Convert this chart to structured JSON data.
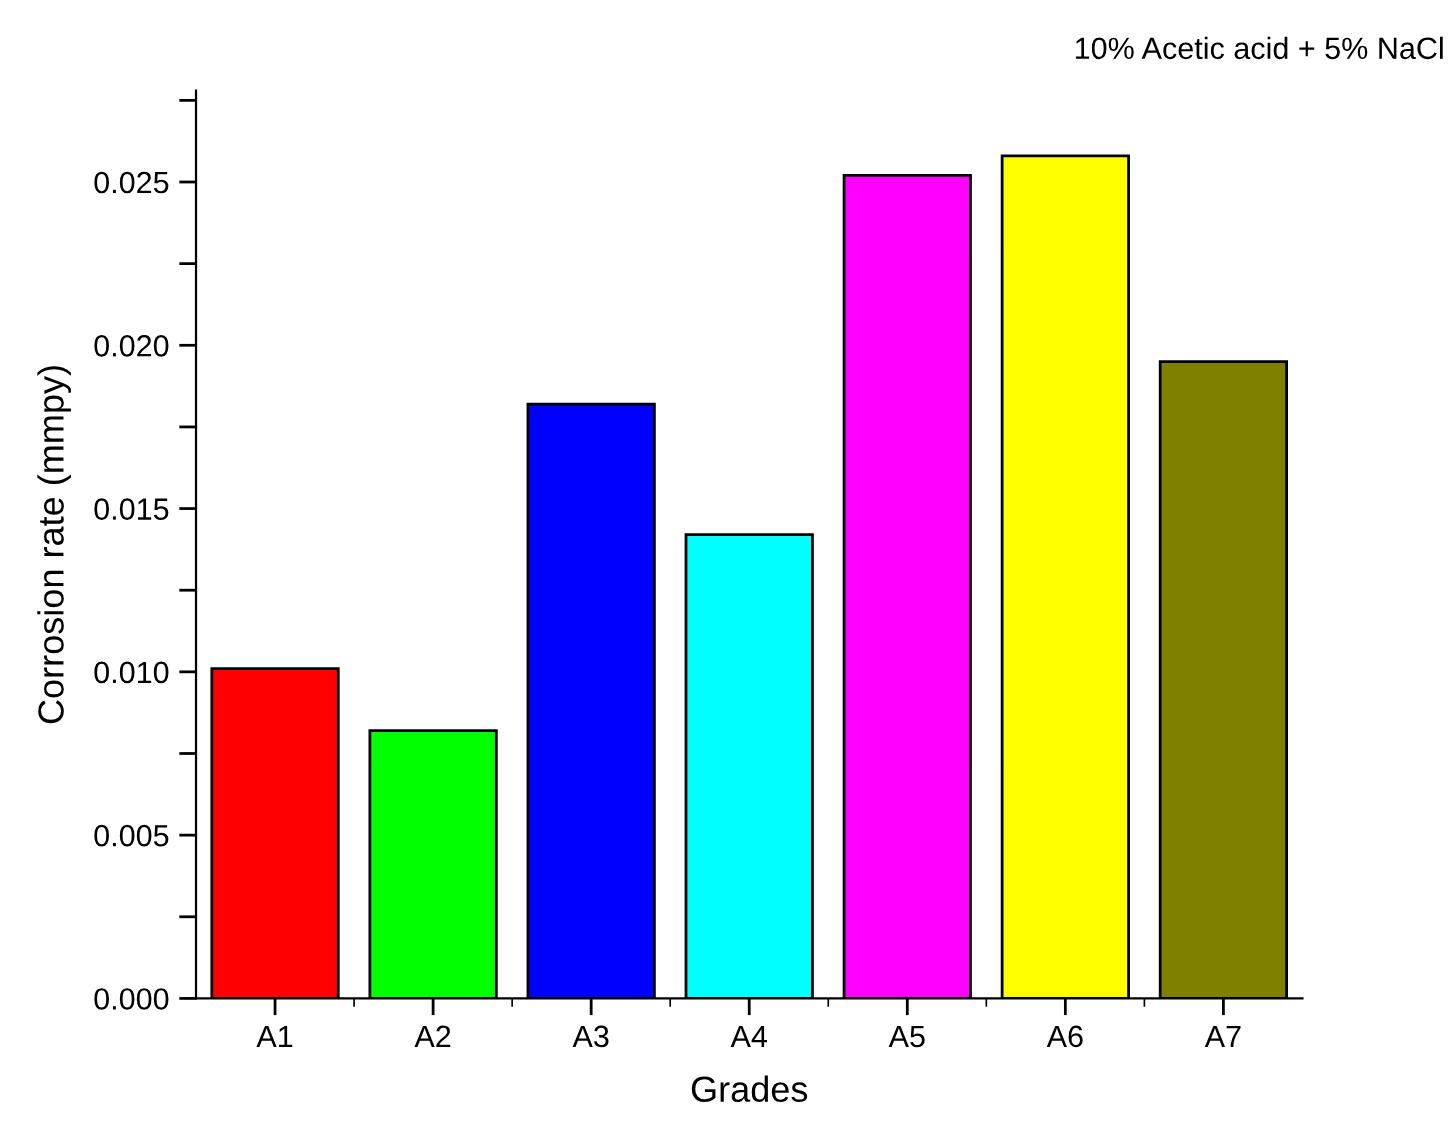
{
  "chart_data": {
    "type": "bar",
    "title": "10% Acetic acid + 5% NaCl",
    "xlabel": "Grades",
    "ylabel": "Corrosion rate (mmpy)",
    "categories": [
      "A1",
      "A2",
      "A3",
      "A4",
      "A5",
      "A6",
      "A7"
    ],
    "values": [
      0.0101,
      0.0082,
      0.0182,
      0.0142,
      0.0252,
      0.0258,
      0.0195
    ],
    "colors": [
      "#ff0000",
      "#00ff00",
      "#0000ff",
      "#00ffff",
      "#ff00ff",
      "#ffff00",
      "#808000"
    ],
    "ylim": [
      0,
      0.0278
    ],
    "yticks": [
      {
        "value": 0,
        "label": "0.000"
      },
      {
        "value": 0.0025,
        "label": null
      },
      {
        "value": 0.005,
        "label": "0.005"
      },
      {
        "value": 0.0075,
        "label": null
      },
      {
        "value": 0.01,
        "label": "0.010"
      },
      {
        "value": 0.0125,
        "label": null
      },
      {
        "value": 0.015,
        "label": "0.015"
      },
      {
        "value": 0.0175,
        "label": null
      },
      {
        "value": 0.02,
        "label": "0.020"
      },
      {
        "value": 0.0225,
        "label": null
      },
      {
        "value": 0.025,
        "label": "0.025"
      },
      {
        "value": 0.0275,
        "label": null
      }
    ],
    "grid": false,
    "legend": false
  }
}
